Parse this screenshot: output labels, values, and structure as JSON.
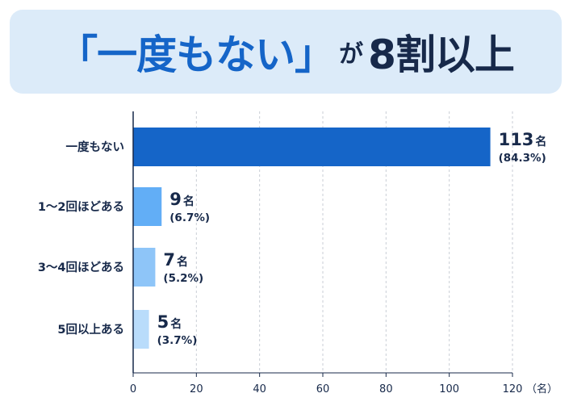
{
  "header": {
    "title_quote": "「一度もない」",
    "title_particle": "が",
    "title_rest": "8割以上"
  },
  "chart_data": {
    "type": "bar",
    "orientation": "horizontal",
    "categories": [
      "一度もない",
      "1～2回ほどある",
      "3～4回ほどある",
      "5回以上ある"
    ],
    "values": [
      113,
      9,
      7,
      5
    ],
    "count_unit": "名",
    "percent_labels": [
      "(84.3%)",
      "(6.7%)",
      "(5.2%)",
      "(3.7%)"
    ],
    "xlim": [
      0,
      120
    ],
    "xticks": [
      0,
      20,
      40,
      60,
      80,
      100,
      120
    ],
    "xunit": "（名）",
    "colors": [
      "#1565c8",
      "#62aef6",
      "#8ec5f8",
      "#b9dcfb"
    ],
    "grid": true
  }
}
